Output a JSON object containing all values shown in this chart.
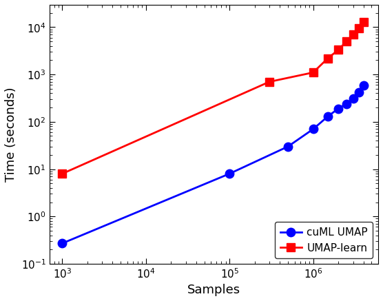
{
  "cuml_x": [
    1000,
    100000,
    500000,
    1000000,
    1500000,
    2000000,
    2500000,
    3000000,
    3500000,
    4000000
  ],
  "cuml_y": [
    0.27,
    8.0,
    30.0,
    70.0,
    130.0,
    190.0,
    240.0,
    310.0,
    420.0,
    580.0
  ],
  "umap_learn_x": [
    1000,
    300000,
    1000000,
    1500000,
    2000000,
    2500000,
    3000000,
    3500000,
    4000000
  ],
  "umap_learn_y": [
    8.0,
    700.0,
    1100.0,
    2200.0,
    3300.0,
    5000.0,
    7000.0,
    9500.0,
    13000.0
  ],
  "cuml_color": "#0000ff",
  "umap_learn_color": "#ff0000",
  "cuml_label": "cuML UMAP",
  "umap_learn_label": "UMAP-learn",
  "xlabel": "Samples",
  "ylabel": "Time (seconds)",
  "xlim": [
    700,
    6000000
  ],
  "ylim": [
    0.1,
    30000
  ],
  "marker_size": 9,
  "linewidth": 2,
  "background_color": "#ffffff",
  "title": ""
}
